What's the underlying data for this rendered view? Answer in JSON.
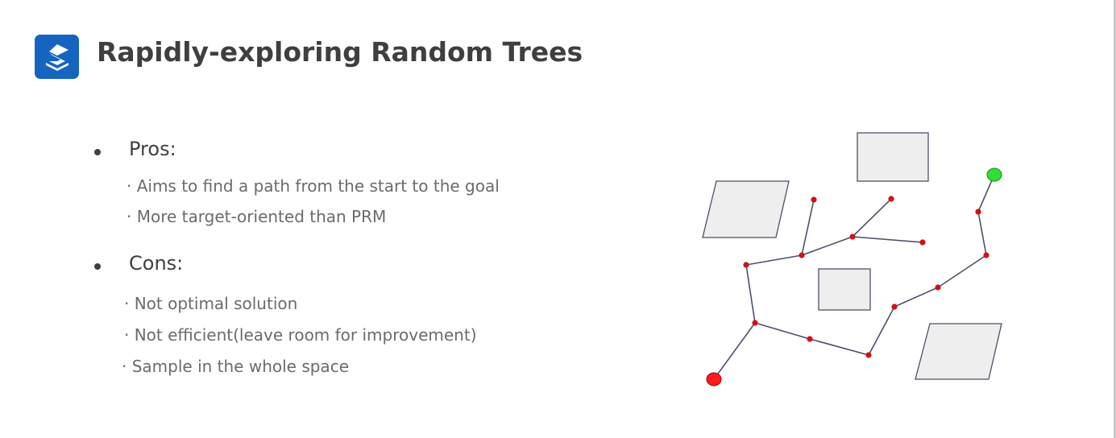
{
  "slide": {
    "title": "Rapidly-exploring Random Trees",
    "pros_heading": "Pros:",
    "pros": [
      "· Aims to find a path from the start to the goal",
      "· More target-oriented than PRM"
    ],
    "cons_heading": "Cons:",
    "cons": [
      "· Not optimal solution",
      "· Not efficient(leave room for improvement)",
      "· Sample in the whole space"
    ]
  },
  "colors": {
    "title": "#3f3f3f",
    "logo": "#1565c0",
    "node": "#d0101a",
    "start": "#ff1a1a",
    "goal": "#33dd33",
    "edge": "#4a5268",
    "obstacle_fill": "#eeeeee",
    "obstacle_stroke": "#4a5268"
  },
  "icons": {
    "logo": "stacked-s-logo-icon"
  }
}
